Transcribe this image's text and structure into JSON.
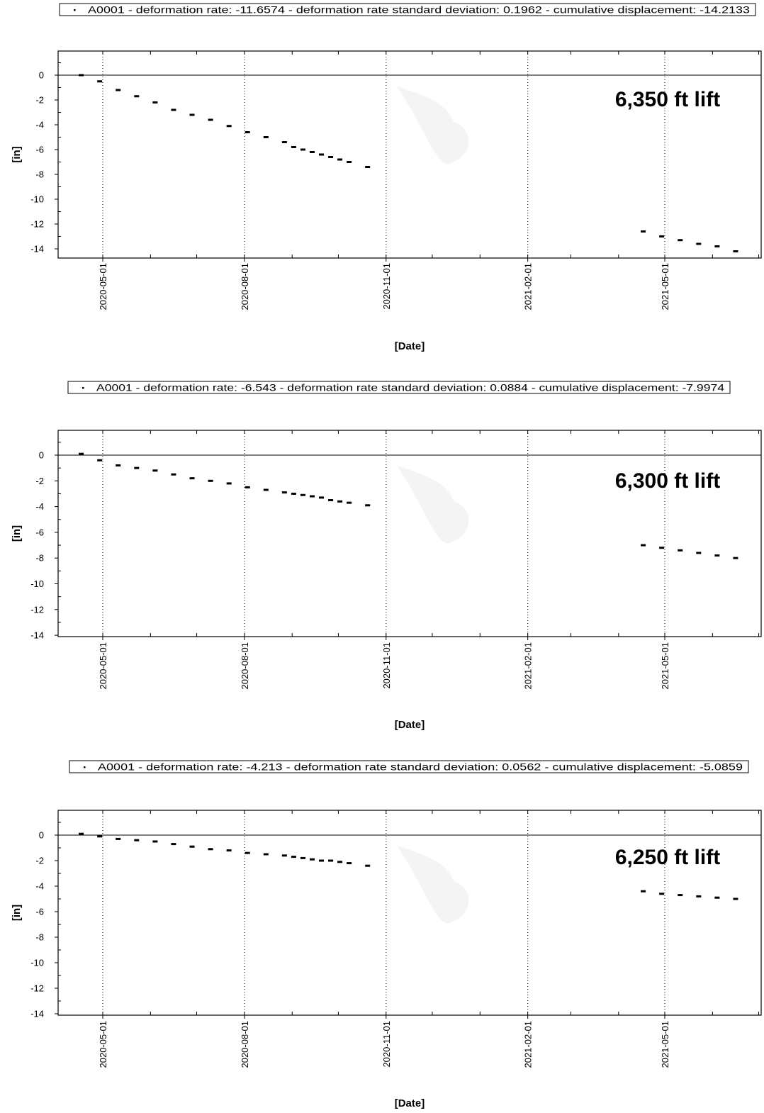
{
  "chart_data": [
    {
      "type": "scatter",
      "legend": "A0001 - deformation rate: -11.6574 - deformation rate standard deviation: 0.1962 - cumulative displacement: -14.2133",
      "annotation": "6,350 ft lift",
      "xlabel": "[Date]",
      "ylabel": "[in]",
      "ylim": [
        -14.5,
        1.5
      ],
      "yticks": [
        0,
        -2,
        -4,
        -6,
        -8,
        -10,
        -12,
        -14
      ],
      "xticks": [
        "2020-05-01",
        "2020-08-01",
        "2020-11-01",
        "2021-02-01",
        "2021-05-01"
      ],
      "grid": "vertical dotted at x ticks, solid line at y=0",
      "series": [
        {
          "x": [
            "2020-04-17",
            "2020-04-29",
            "2020-05-11",
            "2020-05-23",
            "2020-06-04",
            "2020-06-16",
            "2020-06-28",
            "2020-07-10",
            "2020-07-22",
            "2020-08-03",
            "2020-08-15",
            "2020-08-27",
            "2020-09-02",
            "2020-09-08",
            "2020-09-14",
            "2020-09-20",
            "2020-09-26",
            "2020-10-02",
            "2020-10-08",
            "2020-10-20",
            "2021-04-17",
            "2021-04-29",
            "2021-05-11",
            "2021-05-23",
            "2021-06-04",
            "2021-06-16"
          ],
          "y": [
            0.0,
            -0.5,
            -1.2,
            -1.7,
            -2.2,
            -2.8,
            -3.2,
            -3.6,
            -4.1,
            -4.6,
            -5.0,
            -5.4,
            -5.8,
            -6.0,
            -6.2,
            -6.4,
            -6.6,
            -6.8,
            -7.0,
            -7.4,
            -12.6,
            -13.0,
            -13.3,
            -13.6,
            -13.8,
            -14.2
          ]
        }
      ]
    },
    {
      "type": "scatter",
      "legend": "A0001 - deformation rate: -6.543 - deformation rate standard deviation: 0.0884 - cumulative displacement: -7.9974",
      "annotation": "6,300 ft lift",
      "xlabel": "[Date]",
      "ylabel": "[in]",
      "ylim": [
        -14,
        2
      ],
      "yticks": [
        0,
        -2,
        -4,
        -6,
        -8,
        -10,
        -12,
        -14
      ],
      "xticks": [
        "2020-05-01",
        "2020-08-01",
        "2020-11-01",
        "2021-02-01",
        "2021-05-01"
      ],
      "grid": "vertical dotted at x ticks, solid line at y=0",
      "series": [
        {
          "x": [
            "2020-04-17",
            "2020-04-29",
            "2020-05-11",
            "2020-05-23",
            "2020-06-04",
            "2020-06-16",
            "2020-06-28",
            "2020-07-10",
            "2020-07-22",
            "2020-08-03",
            "2020-08-15",
            "2020-08-27",
            "2020-09-02",
            "2020-09-08",
            "2020-09-14",
            "2020-09-20",
            "2020-09-26",
            "2020-10-02",
            "2020-10-08",
            "2020-10-20",
            "2021-04-17",
            "2021-04-29",
            "2021-05-11",
            "2021-05-23",
            "2021-06-04",
            "2021-06-16"
          ],
          "y": [
            0.1,
            -0.4,
            -0.8,
            -1.0,
            -1.2,
            -1.5,
            -1.8,
            -2.0,
            -2.2,
            -2.5,
            -2.7,
            -2.9,
            -3.0,
            -3.1,
            -3.2,
            -3.3,
            -3.5,
            -3.6,
            -3.7,
            -3.9,
            -7.0,
            -7.2,
            -7.4,
            -7.6,
            -7.8,
            -8.0
          ]
        }
      ]
    },
    {
      "type": "scatter",
      "legend": "A0001 - deformation rate: -4.213 - deformation rate standard deviation: 0.0562 - cumulative displacement: -5.0859",
      "annotation": "6,250 ft lift",
      "xlabel": "[Date]",
      "ylabel": "[in]",
      "ylim": [
        -14,
        2
      ],
      "yticks": [
        0,
        -2,
        -4,
        -6,
        -8,
        -10,
        -12,
        -14
      ],
      "xticks": [
        "2020-05-01",
        "2020-08-01",
        "2020-11-01",
        "2021-02-01",
        "2021-05-01"
      ],
      "grid": "vertical dotted at x ticks, solid line at y=0",
      "series": [
        {
          "x": [
            "2020-04-17",
            "2020-04-29",
            "2020-05-11",
            "2020-05-23",
            "2020-06-04",
            "2020-06-16",
            "2020-06-28",
            "2020-07-10",
            "2020-07-22",
            "2020-08-03",
            "2020-08-15",
            "2020-08-27",
            "2020-09-02",
            "2020-09-08",
            "2020-09-14",
            "2020-09-20",
            "2020-09-26",
            "2020-10-02",
            "2020-10-08",
            "2020-10-20",
            "2021-04-17",
            "2021-04-29",
            "2021-05-11",
            "2021-05-23",
            "2021-06-04",
            "2021-06-16"
          ],
          "y": [
            0.1,
            -0.1,
            -0.3,
            -0.4,
            -0.5,
            -0.7,
            -0.9,
            -1.1,
            -1.2,
            -1.4,
            -1.5,
            -1.6,
            -1.7,
            -1.8,
            -1.9,
            -2.0,
            -2.0,
            -2.1,
            -2.2,
            -2.4,
            -4.4,
            -4.6,
            -4.7,
            -4.8,
            -4.9,
            -5.0
          ]
        }
      ]
    }
  ]
}
